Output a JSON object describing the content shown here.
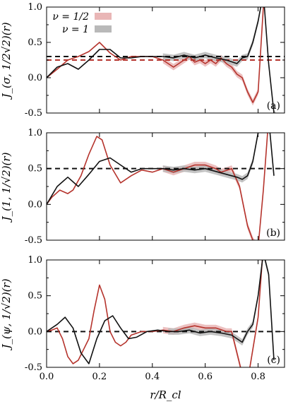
{
  "colors": {
    "red": "#b5332c",
    "red_band": "#e9b6b6",
    "black": "#111111",
    "grey_band": "#b9b9b9"
  },
  "chart_data": [
    {
      "type": "line",
      "panel_tag": "(a)",
      "ylabel": "J_(σ, 1/2√2)(r)",
      "xlabel": "",
      "xlim": [
        0.0,
        0.9
      ],
      "ylim": [
        -0.5,
        1.0
      ],
      "y_ticks": [
        "1.0",
        "0.5",
        "0.0",
        "-0.5"
      ],
      "x_ticks": [],
      "legend": {
        "placement": "top-left",
        "entries": [
          {
            "label": "ν = 1/2",
            "color": "#e9b6b6"
          },
          {
            "label": "ν = 1",
            "color": "#b9b9b9"
          }
        ]
      },
      "reference_lines": [
        {
          "y": 0.3,
          "color": "#111111",
          "style": "dashed"
        },
        {
          "y": 0.25,
          "color": "#b5332c",
          "style": "dashed"
        }
      ],
      "series": [
        {
          "name": "ν = 1/2",
          "color": "#b5332c",
          "band_color": "#e9b6b6",
          "x": [
            0.0,
            0.04,
            0.08,
            0.12,
            0.16,
            0.2,
            0.24,
            0.28,
            0.32,
            0.36,
            0.4,
            0.44,
            0.46,
            0.48,
            0.5,
            0.52,
            0.54,
            0.56,
            0.58,
            0.6,
            0.62,
            0.64,
            0.66,
            0.68,
            0.7,
            0.72,
            0.74,
            0.76,
            0.78,
            0.8,
            0.82,
            0.84
          ],
          "y": [
            0.0,
            0.12,
            0.25,
            0.3,
            0.37,
            0.5,
            0.35,
            0.25,
            0.3,
            0.3,
            0.3,
            0.25,
            0.2,
            0.15,
            0.2,
            0.25,
            0.3,
            0.22,
            0.25,
            0.2,
            0.25,
            0.2,
            0.28,
            0.2,
            0.15,
            0.05,
            0.0,
            -0.2,
            -0.35,
            -0.2,
            1.0,
            1.2
          ]
        },
        {
          "name": "ν = 1",
          "color": "#111111",
          "band_color": "#b9b9b9",
          "x": [
            0.0,
            0.04,
            0.08,
            0.12,
            0.16,
            0.2,
            0.24,
            0.28,
            0.32,
            0.36,
            0.4,
            0.44,
            0.48,
            0.52,
            0.56,
            0.6,
            0.64,
            0.68,
            0.72,
            0.74,
            0.76,
            0.78,
            0.8,
            0.82,
            0.84,
            0.86,
            0.88
          ],
          "y": [
            0.0,
            0.15,
            0.2,
            0.12,
            0.25,
            0.4,
            0.4,
            0.28,
            0.28,
            0.3,
            0.3,
            0.3,
            0.28,
            0.32,
            0.28,
            0.32,
            0.28,
            0.25,
            0.2,
            0.28,
            0.3,
            0.5,
            0.8,
            1.2,
            0.2,
            -0.5,
            -0.6
          ]
        }
      ]
    },
    {
      "type": "line",
      "panel_tag": "(b)",
      "ylabel": "J_(1, 1/√2)(r)",
      "xlabel": "",
      "xlim": [
        0.0,
        0.9
      ],
      "ylim": [
        -0.5,
        1.0
      ],
      "y_ticks": [
        "1.0",
        "0.5",
        "0.0",
        "-0.5"
      ],
      "x_ticks": [],
      "reference_lines": [
        {
          "y": 0.5,
          "color": "#111111",
          "style": "dashed"
        }
      ],
      "series": [
        {
          "name": "ν = 1/2",
          "color": "#b5332c",
          "band_color": "#e9b6b6",
          "x": [
            0.0,
            0.02,
            0.05,
            0.08,
            0.1,
            0.13,
            0.16,
            0.19,
            0.21,
            0.24,
            0.28,
            0.32,
            0.36,
            0.4,
            0.44,
            0.48,
            0.52,
            0.56,
            0.6,
            0.64,
            0.66,
            0.7,
            0.73,
            0.76,
            0.78,
            0.8,
            0.82,
            0.84
          ],
          "y": [
            0.0,
            0.1,
            0.2,
            0.15,
            0.2,
            0.4,
            0.7,
            0.95,
            0.9,
            0.55,
            0.3,
            0.4,
            0.48,
            0.45,
            0.5,
            0.45,
            0.5,
            0.55,
            0.55,
            0.5,
            0.45,
            0.5,
            0.25,
            -0.3,
            -0.5,
            -0.6,
            0.2,
            1.2
          ]
        },
        {
          "name": "ν = 1",
          "color": "#111111",
          "band_color": "#b9b9b9",
          "x": [
            0.0,
            0.04,
            0.08,
            0.12,
            0.16,
            0.2,
            0.24,
            0.28,
            0.32,
            0.36,
            0.4,
            0.44,
            0.48,
            0.52,
            0.56,
            0.6,
            0.64,
            0.68,
            0.72,
            0.74,
            0.76,
            0.78,
            0.8,
            0.82,
            0.84,
            0.86
          ],
          "y": [
            0.0,
            0.25,
            0.38,
            0.25,
            0.42,
            0.6,
            0.65,
            0.55,
            0.45,
            0.5,
            0.5,
            0.5,
            0.48,
            0.5,
            0.48,
            0.5,
            0.46,
            0.42,
            0.38,
            0.35,
            0.4,
            0.6,
            1.0,
            1.4,
            1.2,
            0.4
          ]
        }
      ]
    },
    {
      "type": "line",
      "panel_tag": "(c)",
      "ylabel": "J_(ψ, 1/√2)(r)",
      "xlabel": "r/R_cl",
      "xlim": [
        0.0,
        0.9
      ],
      "ylim": [
        -0.5,
        1.0
      ],
      "y_ticks": [
        "1.0",
        "0.5",
        "0.0",
        "-0.5"
      ],
      "x_ticks": [
        "0.0",
        "0.2",
        "0.4",
        "0.6",
        "0.8"
      ],
      "reference_lines": [
        {
          "y": 0.0,
          "color": "#111111",
          "style": "dashed"
        }
      ],
      "series": [
        {
          "name": "ν = 1/2",
          "color": "#b5332c",
          "band_color": "#e9b6b6",
          "x": [
            0.0,
            0.02,
            0.04,
            0.06,
            0.08,
            0.1,
            0.12,
            0.14,
            0.16,
            0.18,
            0.2,
            0.22,
            0.24,
            0.26,
            0.28,
            0.3,
            0.32,
            0.36,
            0.4,
            0.44,
            0.48,
            0.52,
            0.56,
            0.6,
            0.64,
            0.68,
            0.7,
            0.72,
            0.74,
            0.76,
            0.8,
            0.82
          ],
          "y": [
            0.0,
            0.02,
            0.05,
            -0.1,
            -0.35,
            -0.45,
            -0.4,
            -0.25,
            -0.1,
            0.3,
            0.65,
            0.45,
            0.0,
            -0.15,
            -0.2,
            -0.15,
            -0.05,
            0.0,
            0.0,
            0.02,
            0.0,
            0.05,
            0.08,
            0.05,
            0.05,
            0.0,
            0.0,
            -0.3,
            -0.6,
            -0.7,
            0.2,
            1.2
          ]
        },
        {
          "name": "ν = 1",
          "color": "#111111",
          "band_color": "#b9b9b9",
          "x": [
            0.0,
            0.04,
            0.07,
            0.1,
            0.13,
            0.16,
            0.19,
            0.22,
            0.25,
            0.28,
            0.31,
            0.34,
            0.38,
            0.42,
            0.46,
            0.5,
            0.54,
            0.58,
            0.62,
            0.66,
            0.7,
            0.72,
            0.74,
            0.76,
            0.78,
            0.8,
            0.82,
            0.84,
            0.86
          ],
          "y": [
            0.0,
            0.1,
            0.2,
            0.05,
            -0.3,
            -0.45,
            -0.1,
            0.15,
            0.22,
            0.05,
            -0.1,
            -0.08,
            0.0,
            0.02,
            0.0,
            0.0,
            0.02,
            -0.02,
            0.0,
            -0.02,
            -0.05,
            -0.1,
            -0.15,
            0.0,
            0.1,
            0.5,
            1.1,
            0.8,
            -0.4
          ]
        }
      ]
    }
  ]
}
